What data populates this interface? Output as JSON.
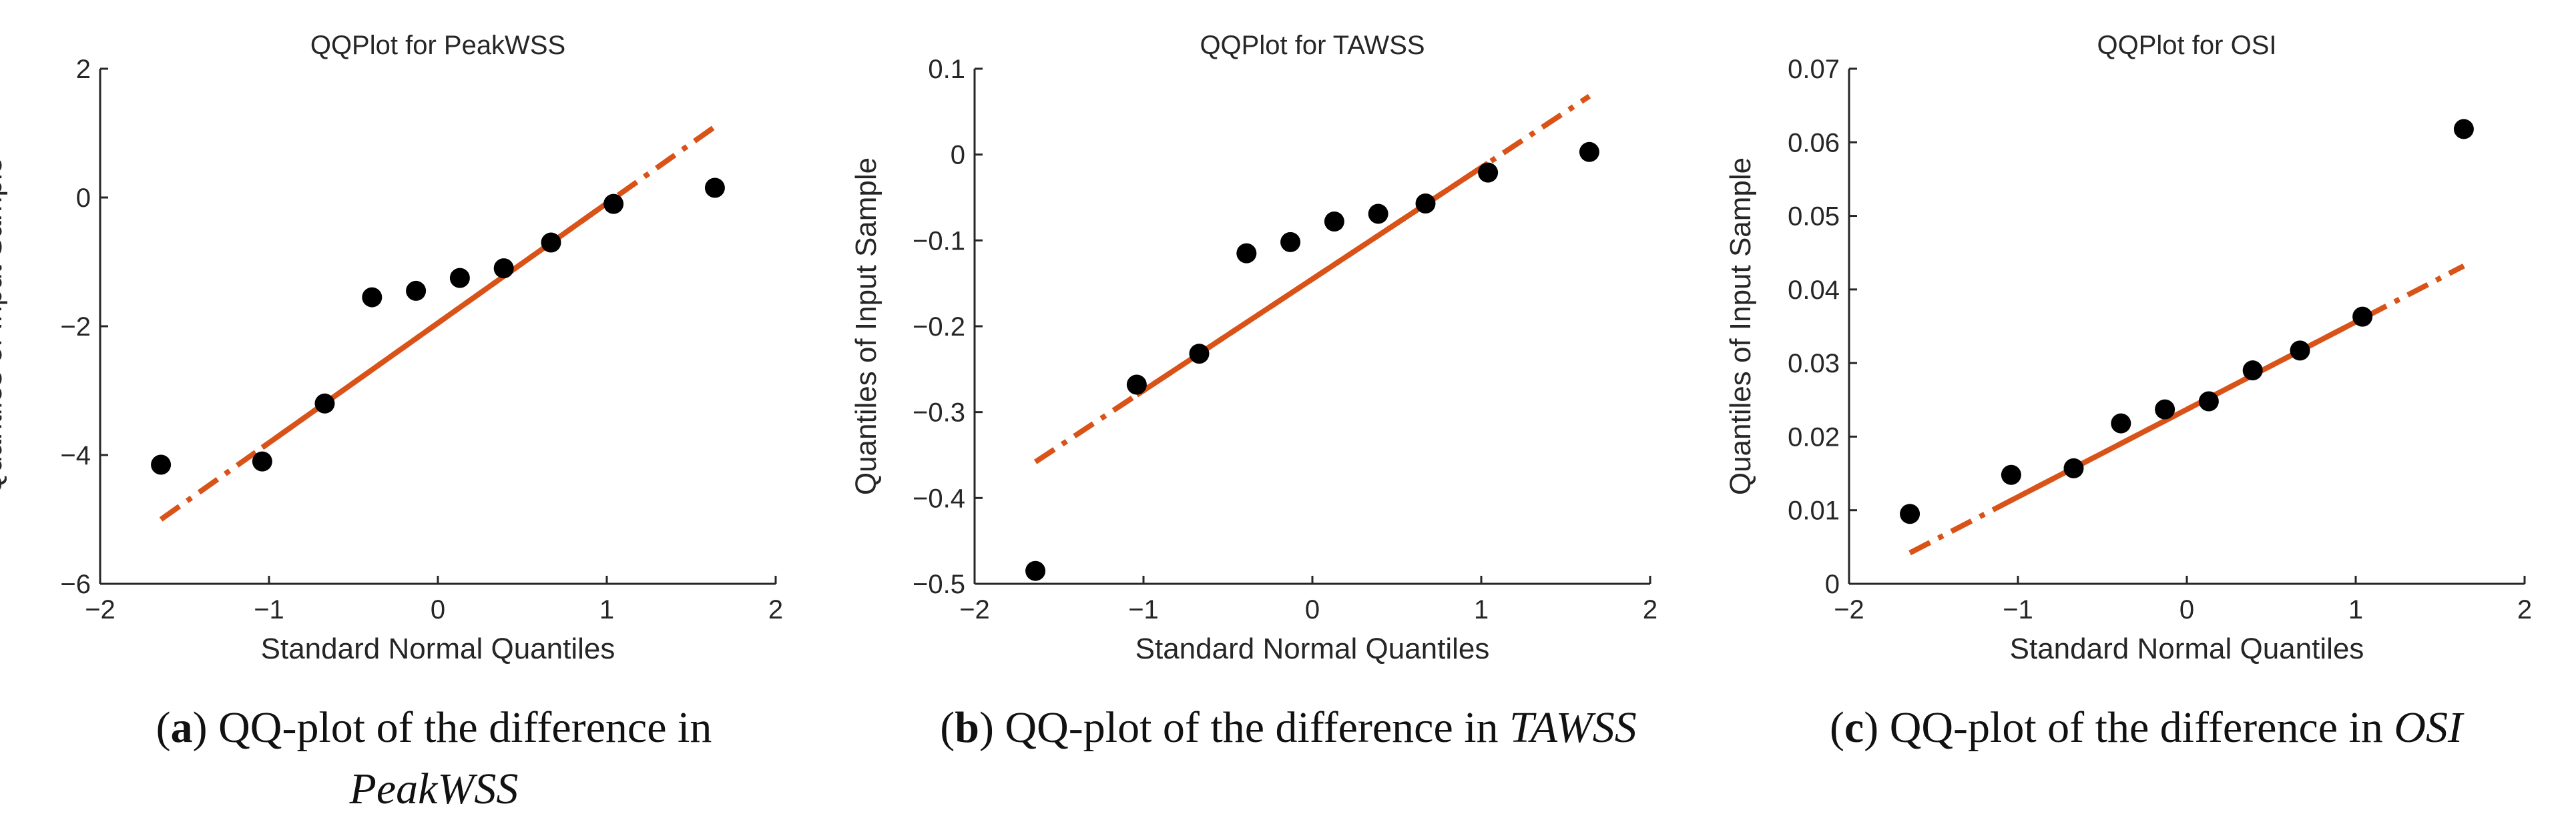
{
  "chart_data": [
    {
      "type": "scatter",
      "title": "QQPlot for PeakWSS",
      "xlabel": "Standard Normal Quantiles",
      "ylabel": "Quantiles of Input Sample",
      "xlim": [
        -2,
        2
      ],
      "ylim": [
        -6,
        2
      ],
      "xticks": [
        -2,
        -1,
        0,
        1,
        2
      ],
      "yticks": [
        -6,
        -4,
        -2,
        0,
        2
      ],
      "xtick_labels": [
        "−2",
        "−1",
        "0",
        "1",
        "2"
      ],
      "ytick_labels": [
        "−6",
        "−4",
        "−2",
        "0",
        "2"
      ],
      "points": {
        "x": [
          -1.64,
          -1.04,
          -0.67,
          -0.39,
          -0.13,
          0.13,
          0.39,
          0.67,
          1.04,
          1.64
        ],
        "y": [
          -4.15,
          -4.1,
          -3.2,
          -1.55,
          -1.45,
          -1.25,
          -1.1,
          -0.7,
          -0.1,
          0.15
        ]
      },
      "reference_line": {
        "x": [
          -1.64,
          1.64
        ],
        "y": [
          -5.0,
          1.1
        ],
        "solid_range": [
          -1.04,
          1.04
        ]
      },
      "caption": {
        "label": "a",
        "text": "QQ-plot of the difference in",
        "var": "PeakWSS"
      }
    },
    {
      "type": "scatter",
      "title": "QQPlot for TAWSS",
      "xlabel": "Standard Normal Quantiles",
      "ylabel": "Quantiles of Input Sample",
      "xlim": [
        -2,
        2
      ],
      "ylim": [
        -0.5,
        0.1
      ],
      "xticks": [
        -2,
        -1,
        0,
        1,
        2
      ],
      "yticks": [
        -0.5,
        -0.4,
        -0.3,
        -0.2,
        -0.1,
        0,
        0.1
      ],
      "xtick_labels": [
        "−2",
        "−1",
        "0",
        "1",
        "2"
      ],
      "ytick_labels": [
        "−0.5",
        "−0.4",
        "−0.3",
        "−0.2",
        "−0.1",
        "0",
        "0.1"
      ],
      "points": {
        "x": [
          -1.64,
          -1.04,
          -0.67,
          -0.39,
          -0.13,
          0.13,
          0.39,
          0.67,
          1.04,
          1.64
        ],
        "y": [
          -0.485,
          -0.268,
          -0.232,
          -0.115,
          -0.102,
          -0.078,
          -0.069,
          -0.057,
          -0.021,
          0.003
        ]
      },
      "reference_line": {
        "x": [
          -1.64,
          1.64
        ],
        "y": [
          -0.358,
          0.068
        ],
        "solid_range": [
          -1.04,
          1.04
        ]
      },
      "caption": {
        "label": "b",
        "text": "QQ-plot of the difference in",
        "var": "TAWSS"
      }
    },
    {
      "type": "scatter",
      "title": "QQPlot for OSI",
      "xlabel": "Standard Normal Quantiles",
      "ylabel": "Quantiles of Input Sample",
      "xlim": [
        -2,
        2
      ],
      "ylim": [
        0,
        0.07
      ],
      "xticks": [
        -2,
        -1,
        0,
        1,
        2
      ],
      "yticks": [
        0,
        0.01,
        0.02,
        0.03,
        0.04,
        0.05,
        0.06,
        0.07
      ],
      "xtick_labels": [
        "−2",
        "−1",
        "0",
        "1",
        "2"
      ],
      "ytick_labels": [
        "0",
        "0.01",
        "0.02",
        "0.03",
        "0.04",
        "0.05",
        "0.06",
        "0.07"
      ],
      "points": {
        "x": [
          -1.64,
          -1.04,
          -0.67,
          -0.39,
          -0.13,
          0.13,
          0.39,
          0.67,
          1.04,
          1.64
        ],
        "y": [
          0.0095,
          0.0148,
          0.0157,
          0.0218,
          0.0237,
          0.0248,
          0.029,
          0.0317,
          0.0363,
          0.0618
        ]
      },
      "reference_line": {
        "x": [
          -1.64,
          1.64
        ],
        "y": [
          0.0042,
          0.0432
        ],
        "solid_range": [
          -1.04,
          1.04
        ]
      },
      "caption": {
        "label": "c",
        "text": "QQ-plot of the difference in",
        "var": "OSI"
      }
    }
  ],
  "colors": {
    "points": "#000000",
    "reference_line": "#D95319",
    "axis": "#262626"
  }
}
